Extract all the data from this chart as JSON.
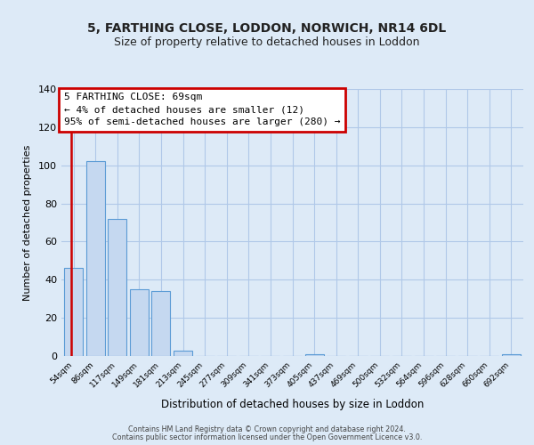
{
  "title": "5, FARTHING CLOSE, LODDON, NORWICH, NR14 6DL",
  "subtitle": "Size of property relative to detached houses in Loddon",
  "xlabel": "Distribution of detached houses by size in Loddon",
  "ylabel": "Number of detached properties",
  "categories": [
    "54sqm",
    "86sqm",
    "117sqm",
    "149sqm",
    "181sqm",
    "213sqm",
    "245sqm",
    "277sqm",
    "309sqm",
    "341sqm",
    "373sqm",
    "405sqm",
    "437sqm",
    "469sqm",
    "500sqm",
    "532sqm",
    "564sqm",
    "596sqm",
    "628sqm",
    "660sqm",
    "692sqm"
  ],
  "values": [
    46,
    102,
    72,
    35,
    34,
    3,
    0,
    0,
    0,
    0,
    0,
    1,
    0,
    0,
    0,
    0,
    0,
    0,
    0,
    0,
    1
  ],
  "bar_color": "#c5d8f0",
  "bar_edge_color": "#5b9bd5",
  "red_line_color": "#cc0000",
  "annotation_line1": "5 FARTHING CLOSE: 69sqm",
  "annotation_line2": "← 4% of detached houses are smaller (12)",
  "annotation_line3": "95% of semi-detached houses are larger (280) →",
  "ylim": [
    0,
    140
  ],
  "yticks": [
    0,
    20,
    40,
    60,
    80,
    100,
    120,
    140
  ],
  "footer_line1": "Contains HM Land Registry data © Crown copyright and database right 2024.",
  "footer_line2": "Contains public sector information licensed under the Open Government Licence v3.0.",
  "bg_color": "#ddeaf7",
  "plot_bg_color": "#ddeaf7",
  "grid_color": "#b0c8e8",
  "title_fontsize": 10,
  "subtitle_fontsize": 9
}
